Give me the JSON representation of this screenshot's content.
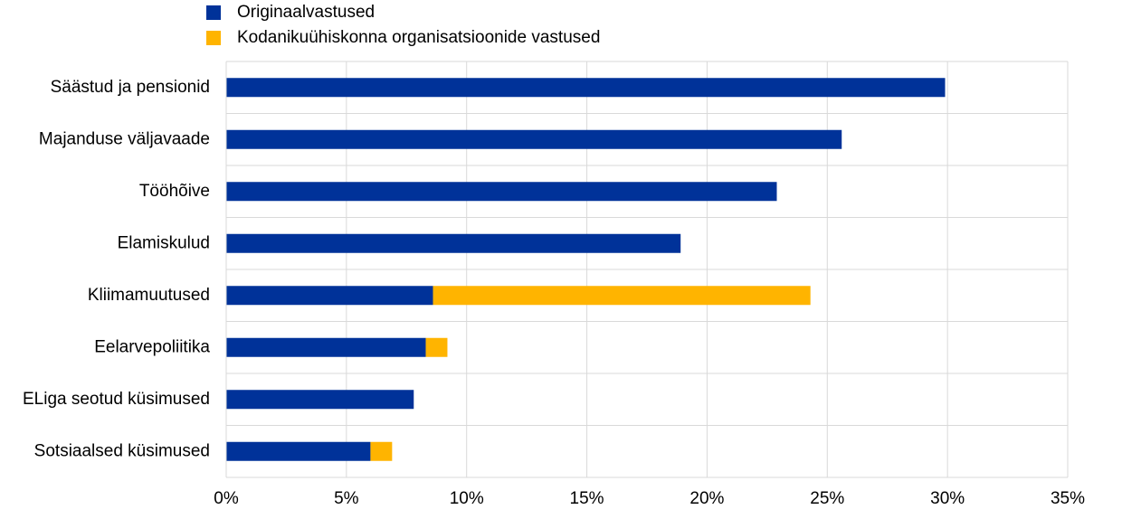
{
  "chart_data": {
    "type": "bar",
    "orientation": "horizontal",
    "stacked": true,
    "categories": [
      "Säästud ja pensionid",
      "Majanduse väljavaade",
      "Tööhõive",
      "Elamiskulud",
      "Kliimamuutused",
      "Eelarvepoliitika",
      "ELiga seotud küsimused",
      "Sotsiaalsed küsimused"
    ],
    "series": [
      {
        "name": "Originaalvastused",
        "color": "#003299",
        "values": [
          29.9,
          25.6,
          22.9,
          18.9,
          8.6,
          8.3,
          7.8,
          6.0
        ]
      },
      {
        "name": "Kodanikuühiskonna organisatsioonide vastused",
        "color": "#ffb400",
        "values": [
          0,
          0,
          0,
          0,
          15.7,
          0.9,
          0,
          0.9
        ]
      }
    ],
    "xlim": [
      0,
      35
    ],
    "xticks": [
      {
        "value": 0,
        "label": "0%"
      },
      {
        "value": 5,
        "label": "5%"
      },
      {
        "value": 10,
        "label": "10%"
      },
      {
        "value": 15,
        "label": "15%"
      },
      {
        "value": 20,
        "label": "20%"
      },
      {
        "value": 25,
        "label": "25%"
      },
      {
        "value": 30,
        "label": "30%"
      },
      {
        "value": 35,
        "label": "35%"
      }
    ],
    "grid": true,
    "legend": "top"
  }
}
